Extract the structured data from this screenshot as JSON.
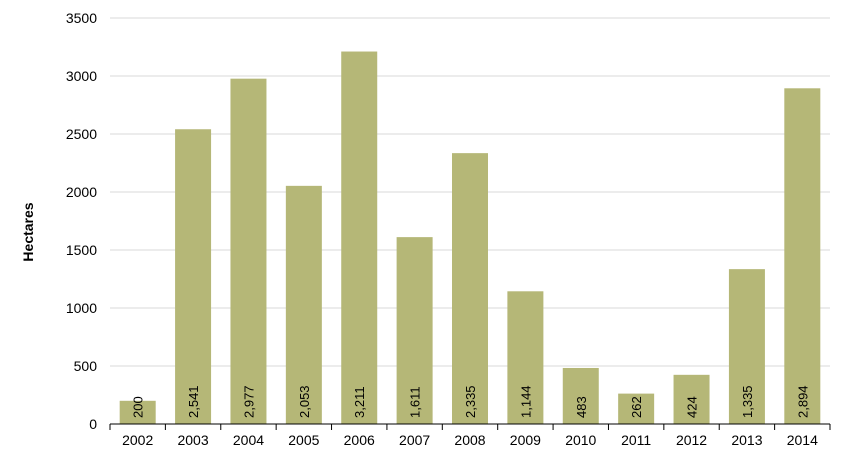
{
  "chart_data": {
    "type": "bar",
    "categories": [
      "2002",
      "2003",
      "2004",
      "2005",
      "2006",
      "2007",
      "2008",
      "2009",
      "2010",
      "2011",
      "2012",
      "2013",
      "2014"
    ],
    "values": [
      200,
      2541,
      2977,
      2053,
      3211,
      1611,
      2335,
      1144,
      483,
      262,
      424,
      1335,
      2894
    ],
    "data_labels": [
      "200",
      "2,541",
      "2,977",
      "2,053",
      "3,211",
      "1,611",
      "2,335",
      "1,144",
      "483",
      "262",
      "424",
      "1,335",
      "2,894"
    ],
    "title": "",
    "xlabel": "",
    "ylabel": "Hectares",
    "ylim": [
      0,
      3500
    ],
    "y_ticks": [
      "0",
      "500",
      "1000",
      "1500",
      "2000",
      "2500",
      "3000",
      "3500"
    ],
    "y_tick_values": [
      0,
      500,
      1000,
      1500,
      2000,
      2500,
      3000,
      3500
    ],
    "grid": true,
    "legend": "none",
    "bar_color": "#b5b777",
    "grid_color": "#d9d9d9"
  }
}
